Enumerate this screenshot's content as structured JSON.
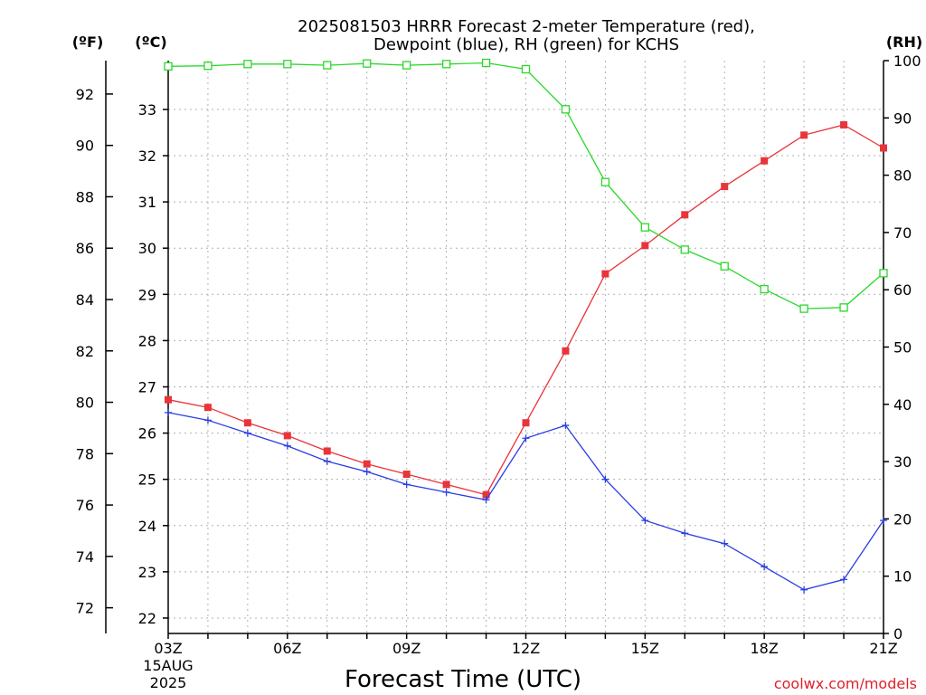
{
  "chart_data": {
    "type": "line",
    "title_line1": "2025081503 HRRR Forecast 2-meter Temperature (red),",
    "title_line2": "Dewpoint (blue), RH (green) for KCHS",
    "unit_f": "(ºF)",
    "unit_c": "(ºC)",
    "unit_rh": "(RH)",
    "xlabel": "Forecast Time (UTC)",
    "credit": "coolwx.com/models",
    "start_date_line1": "15AUG",
    "start_date_line2": "2025",
    "x_hours": [
      3,
      4,
      5,
      6,
      7,
      8,
      9,
      10,
      11,
      12,
      13,
      14,
      15,
      16,
      17,
      18,
      19,
      20,
      21
    ],
    "x_ticks": [
      {
        "hour": 3,
        "label": "03Z"
      },
      {
        "hour": 6,
        "label": "06Z"
      },
      {
        "hour": 9,
        "label": "09Z"
      },
      {
        "hour": 12,
        "label": "12Z"
      },
      {
        "hour": 15,
        "label": "15Z"
      },
      {
        "hour": 18,
        "label": "18Z"
      },
      {
        "hour": 21,
        "label": "21Z"
      }
    ],
    "y_left_f_ticks": [
      72,
      74,
      76,
      78,
      80,
      82,
      84,
      86,
      88,
      90,
      92
    ],
    "y_left_c_ticks": [
      22,
      23,
      24,
      25,
      26,
      27,
      28,
      29,
      30,
      31,
      32,
      33
    ],
    "y_right_rh_ticks": [
      0,
      10,
      20,
      30,
      40,
      50,
      60,
      70,
      80,
      90,
      100
    ],
    "ylim_f": [
      71.0,
      93.3
    ],
    "ylim_rh": [
      0,
      100
    ],
    "grid": true,
    "series": [
      {
        "name": "Temperature",
        "color": "#e8343a",
        "marker": "filled-square",
        "axis": "F",
        "values": [
          80.1,
          79.8,
          79.2,
          78.7,
          78.1,
          77.6,
          77.2,
          76.8,
          76.4,
          79.2,
          82.0,
          85.0,
          86.1,
          87.3,
          88.4,
          89.4,
          90.4,
          90.8,
          89.9
        ]
      },
      {
        "name": "Dewpoint",
        "color": "#2a3ee0",
        "marker": "plus",
        "axis": "F",
        "values": [
          79.6,
          79.3,
          78.8,
          78.3,
          77.7,
          77.3,
          76.8,
          76.5,
          76.2,
          78.6,
          79.1,
          77.0,
          75.4,
          74.9,
          74.5,
          73.6,
          72.7,
          73.1,
          75.4
        ]
      },
      {
        "name": "RH",
        "color": "#2ad82a",
        "marker": "open-square",
        "axis": "RH",
        "values": [
          99.0,
          99.1,
          99.4,
          99.4,
          99.2,
          99.5,
          99.2,
          99.4,
          99.6,
          98.5,
          91.5,
          78.8,
          70.9,
          67.0,
          64.1,
          60.1,
          56.7,
          56.9,
          62.9
        ]
      }
    ]
  }
}
